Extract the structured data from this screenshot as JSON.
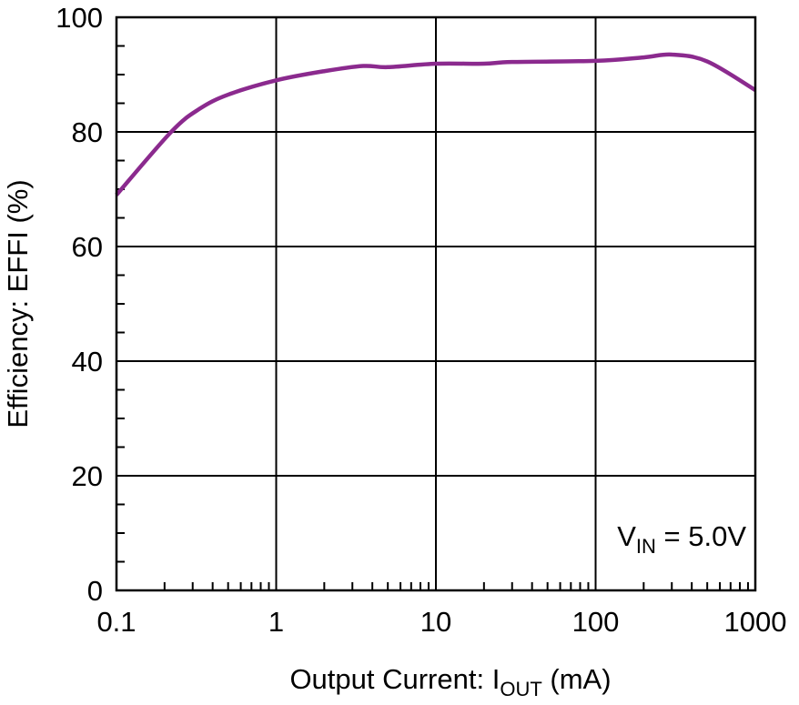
{
  "chart_data": {
    "type": "line",
    "title": "",
    "xlabel": "Output Current: I",
    "xlabel_sub": "OUT",
    "xlabel_unit": " (mA)",
    "ylabel": "Efficiency: EFFI (%)",
    "xscale": "log",
    "xlim": [
      0.1,
      1000
    ],
    "ylim": [
      0,
      100
    ],
    "xticks": [
      0.1,
      1,
      10,
      100,
      1000
    ],
    "xtick_labels": [
      "0.1",
      "1",
      "10",
      "100",
      "1000"
    ],
    "yticks": [
      0,
      20,
      40,
      60,
      80,
      100
    ],
    "ytick_labels": [
      "0",
      "20",
      "40",
      "60",
      "80",
      "100"
    ],
    "grid": true,
    "annotation": {
      "main": "V",
      "sub": "IN",
      "rest": " = 5.0V"
    },
    "series": [
      {
        "name": "VIN = 5.0V",
        "color": "#8B2A8E",
        "x": [
          0.1,
          0.22,
          0.33,
          0.5,
          1,
          2,
          3.5,
          5,
          10,
          20,
          30,
          100,
          200,
          300,
          500,
          1000
        ],
        "y": [
          69,
          80,
          84,
          86.5,
          89,
          90.6,
          91.5,
          91.3,
          91.9,
          91.9,
          92.2,
          92.4,
          93,
          93.5,
          92.3,
          87.3
        ]
      }
    ]
  }
}
